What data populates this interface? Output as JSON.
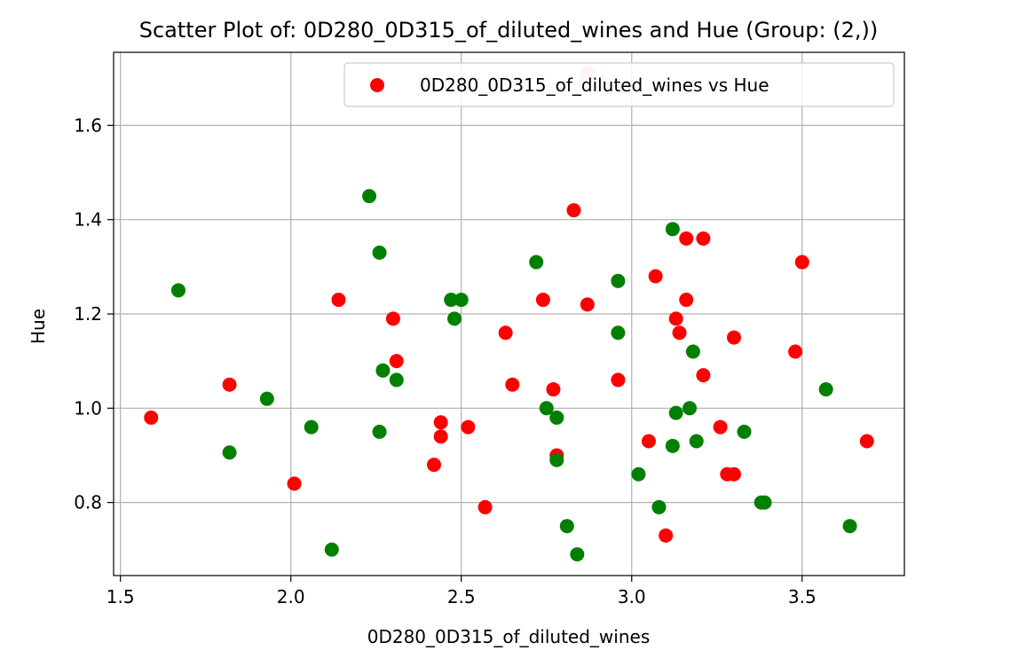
{
  "chart_data": {
    "type": "scatter",
    "title": "Scatter Plot of: 0D280_0D315_of_diluted_wines and Hue (Group: (2,))",
    "xlabel": "0D280_0D315_of_diluted_wines",
    "ylabel": "Hue",
    "xlim": [
      1.48,
      3.8
    ],
    "ylim": [
      0.645,
      1.755
    ],
    "xticks": [
      1.5,
      2.0,
      2.5,
      3.0,
      3.5
    ],
    "xtick_labels": [
      "1.5",
      "2.0",
      "2.5",
      "3.0",
      "3.5"
    ],
    "yticks": [
      0.8,
      1.0,
      1.2,
      1.4,
      1.6
    ],
    "ytick_labels": [
      "0.8",
      "1.0",
      "1.2",
      "1.4",
      "1.6"
    ],
    "grid": true,
    "legend_position": "top-right",
    "series": [
      {
        "name": "0D280_0D315_of_diluted_wines vs Hue",
        "color": "#ff0000",
        "points": [
          [
            1.59,
            0.98
          ],
          [
            1.82,
            1.05
          ],
          [
            2.01,
            0.84
          ],
          [
            2.14,
            1.23
          ],
          [
            2.3,
            1.19
          ],
          [
            2.31,
            1.1
          ],
          [
            2.42,
            0.88
          ],
          [
            2.44,
            0.97
          ],
          [
            2.44,
            0.94
          ],
          [
            2.52,
            0.96
          ],
          [
            2.57,
            0.79
          ],
          [
            2.63,
            1.16
          ],
          [
            2.65,
            1.05
          ],
          [
            2.74,
            1.23
          ],
          [
            2.77,
            1.04
          ],
          [
            2.78,
            0.9
          ],
          [
            2.83,
            1.42
          ],
          [
            2.87,
            1.22
          ],
          [
            2.96,
            1.06
          ],
          [
            3.05,
            0.93
          ],
          [
            3.07,
            1.28
          ],
          [
            3.1,
            0.73
          ],
          [
            3.13,
            1.19
          ],
          [
            3.14,
            1.16
          ],
          [
            3.16,
            1.23
          ],
          [
            3.16,
            1.36
          ],
          [
            3.21,
            1.36
          ],
          [
            3.21,
            1.07
          ],
          [
            3.26,
            0.96
          ],
          [
            3.28,
            0.86
          ],
          [
            3.3,
            0.86
          ],
          [
            3.3,
            1.15
          ],
          [
            3.48,
            1.12
          ],
          [
            3.5,
            1.31
          ],
          [
            3.69,
            0.93
          ]
        ]
      },
      {
        "name": "",
        "color": "#ffc0cb",
        "points": [
          [
            2.87,
            1.71
          ]
        ]
      },
      {
        "name": "",
        "color": "#008000",
        "points": [
          [
            1.67,
            1.25
          ],
          [
            1.82,
            0.906
          ],
          [
            1.93,
            1.02
          ],
          [
            2.06,
            0.96
          ],
          [
            2.12,
            0.7
          ],
          [
            2.23,
            1.45
          ],
          [
            2.26,
            1.33
          ],
          [
            2.26,
            0.95
          ],
          [
            2.27,
            1.08
          ],
          [
            2.31,
            1.06
          ],
          [
            2.47,
            1.23
          ],
          [
            2.48,
            1.19
          ],
          [
            2.5,
            1.23
          ],
          [
            2.72,
            1.31
          ],
          [
            2.75,
            1.0
          ],
          [
            2.78,
            0.98
          ],
          [
            2.78,
            0.89
          ],
          [
            2.81,
            0.75
          ],
          [
            2.84,
            0.69
          ],
          [
            2.96,
            1.27
          ],
          [
            2.96,
            1.16
          ],
          [
            3.02,
            0.86
          ],
          [
            3.08,
            0.79
          ],
          [
            3.12,
            1.38
          ],
          [
            3.12,
            0.92
          ],
          [
            3.13,
            0.99
          ],
          [
            3.17,
            1.0
          ],
          [
            3.18,
            1.12
          ],
          [
            3.19,
            0.93
          ],
          [
            3.33,
            0.95
          ],
          [
            3.38,
            0.8
          ],
          [
            3.39,
            0.8
          ],
          [
            3.57,
            1.04
          ],
          [
            3.64,
            0.75
          ]
        ]
      }
    ]
  }
}
